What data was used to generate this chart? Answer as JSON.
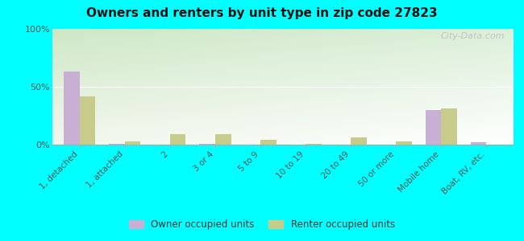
{
  "title": "Owners and renters by unit type in zip code 27823",
  "categories": [
    "1, detached",
    "1, attached",
    "2",
    "3 or 4",
    "5 to 9",
    "10 to 19",
    "20 to 49",
    "50 or more",
    "Mobile home",
    "Boat, RV, etc."
  ],
  "owner_values": [
    63,
    0.5,
    0,
    1,
    0,
    0,
    0,
    0,
    30,
    2
  ],
  "renter_values": [
    42,
    3,
    9,
    9,
    4,
    0.5,
    6,
    3,
    31,
    0
  ],
  "owner_color": "#c9afd4",
  "renter_color": "#c8cc8a",
  "outer_bg": "#00ffff",
  "ylim": [
    0,
    100
  ],
  "yticks": [
    0,
    50,
    100
  ],
  "ytick_labels": [
    "0%",
    "50%",
    "100%"
  ],
  "bar_width": 0.35,
  "watermark": "City-Data.com",
  "legend_labels": [
    "Owner occupied units",
    "Renter occupied units"
  ]
}
